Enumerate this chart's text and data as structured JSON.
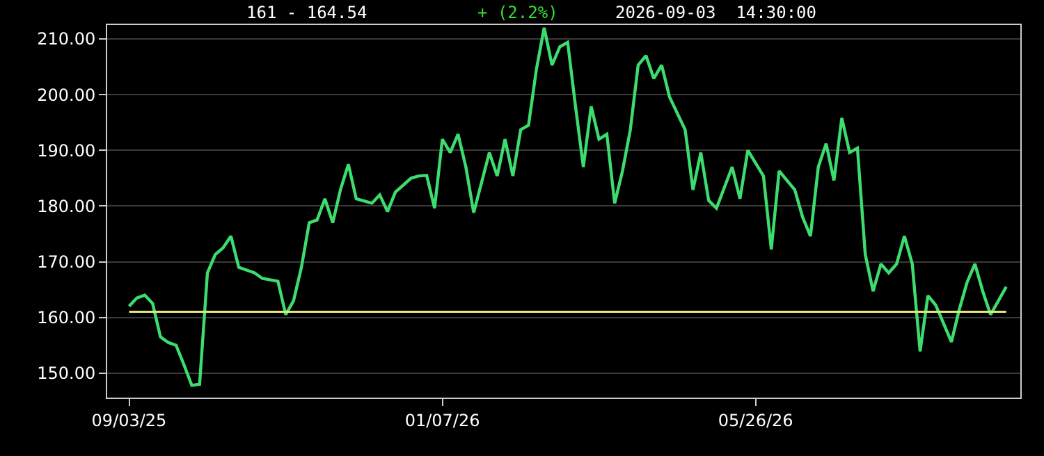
{
  "chart_data": {
    "type": "line",
    "categories": [
      "09/03/25",
      null,
      null,
      null,
      null,
      null,
      null,
      null,
      null,
      null,
      null,
      null,
      null,
      null,
      null,
      null,
      null,
      null,
      null,
      null,
      null,
      null,
      null,
      null,
      null,
      null,
      null,
      null,
      null,
      null,
      null,
      null,
      null,
      null,
      null,
      null,
      null,
      null,
      null,
      null,
      "01/07/26",
      null,
      null,
      null,
      null,
      null,
      null,
      null,
      null,
      null,
      null,
      null,
      null,
      null,
      null,
      null,
      null,
      null,
      null,
      null,
      null,
      null,
      null,
      null,
      null,
      null,
      null,
      null,
      null,
      null,
      null,
      null,
      null,
      null,
      null,
      null,
      null,
      null,
      null,
      null,
      "05/26/26",
      null,
      null,
      null,
      null,
      null,
      null,
      null,
      null,
      null,
      null,
      null,
      null,
      null,
      null,
      null,
      null,
      null,
      null,
      null,
      null,
      null,
      null,
      null,
      null,
      null,
      null,
      null,
      null,
      null,
      null,
      null,
      null
    ],
    "series": [
      {
        "color": "#3ddc6e",
        "values": [
          162,
          163.5,
          164,
          162.5,
          156.5,
          155.5,
          155,
          151.5,
          147.8,
          148,
          168,
          171.3,
          172.5,
          174.6,
          169,
          null,
          168,
          167,
          null,
          166.5,
          160.5,
          163,
          169,
          177,
          177.5,
          181.3,
          177,
          183,
          187.5,
          181.3,
          null,
          180.5,
          182,
          179,
          182.5,
          null,
          185,
          185.4,
          185.5,
          179.6,
          192,
          189.6,
          192.9,
          187,
          178.8,
          null,
          189.6,
          185.4,
          192,
          185.4,
          193.7,
          194.5,
          204.5,
          212,
          205.3,
          208.6,
          209.4,
          197.9,
          187,
          197.9,
          192,
          192.9,
          180.5,
          186.3,
          193.7,
          205.3,
          207,
          202.9,
          205.3,
          199.6,
          null,
          193.7,
          182.9,
          189.6,
          181,
          179.6,
          null,
          187,
          181.3,
          190,
          null,
          185.4,
          172.2,
          186.3,
          null,
          182.9,
          178,
          174.6,
          187,
          191.2,
          184.6,
          195.8,
          189.6,
          190.4,
          171.3,
          164.7,
          169.6,
          168,
          169.6,
          174.6,
          169.6,
          153.9,
          163.9,
          162.2,
          158.9,
          155.6,
          161.4,
          166.3,
          169.6,
          164.7,
          160.5,
          163,
          165.5
        ]
      }
    ],
    "ylim": [
      145.6,
      212.5
    ],
    "yticks": [
      {
        "value": 150,
        "label": "150.00"
      },
      {
        "value": 160,
        "label": "160.00"
      },
      {
        "value": 170,
        "label": "170.00"
      },
      {
        "value": 180,
        "label": "180.00"
      },
      {
        "value": 190,
        "label": "190.00"
      },
      {
        "value": 200,
        "label": "200.00"
      },
      {
        "value": 210,
        "label": "210.00"
      }
    ],
    "ref_lines": [
      {
        "axis": "y",
        "value": 161,
        "color": "#e6e67a"
      }
    ],
    "annotations": [
      "161 - 164.54",
      "+ (2.2%)",
      "2026-09-03  14:30:00"
    ],
    "grid": "y",
    "line_style": "solid",
    "marker": "none"
  }
}
